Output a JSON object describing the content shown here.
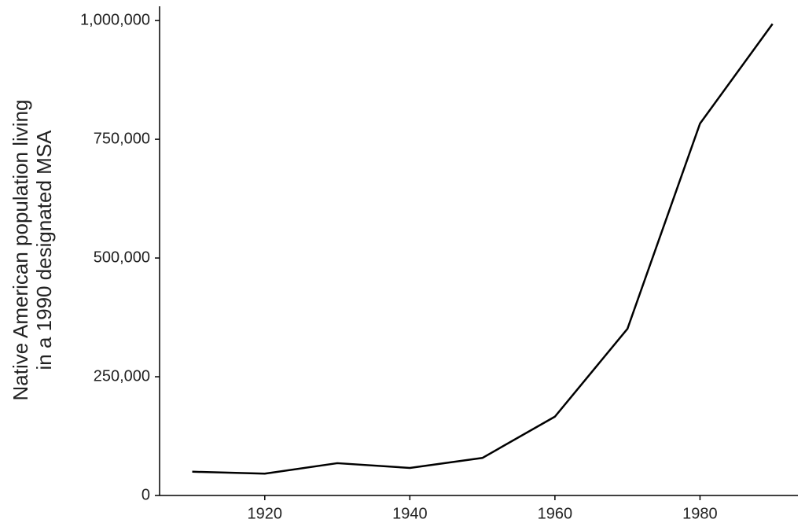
{
  "chart_data": {
    "type": "line",
    "ylabel": [
      "Native American population living",
      "in a 1990 designated MSA"
    ],
    "x": [
      1910,
      1920,
      1930,
      1940,
      1950,
      1960,
      1970,
      1980,
      1990
    ],
    "series": [
      {
        "color": "#000000",
        "values": [
          50000,
          46000,
          68000,
          58000,
          79000,
          166000,
          351000,
          783000,
          993000
        ]
      }
    ],
    "xlim": [
      1905.5,
      1993.5
    ],
    "xticks": [
      1920,
      1940,
      1960,
      1980
    ],
    "ylim": [
      0,
      1030000
    ],
    "yticks": [
      0,
      {
        "value": 250000,
        "label": "250,000"
      },
      {
        "value": 500000,
        "label": "500,000"
      },
      {
        "value": 750000,
        "label": "750,000"
      },
      {
        "value": 1000000,
        "label": "1,000,000"
      }
    ],
    "grid": false
  }
}
